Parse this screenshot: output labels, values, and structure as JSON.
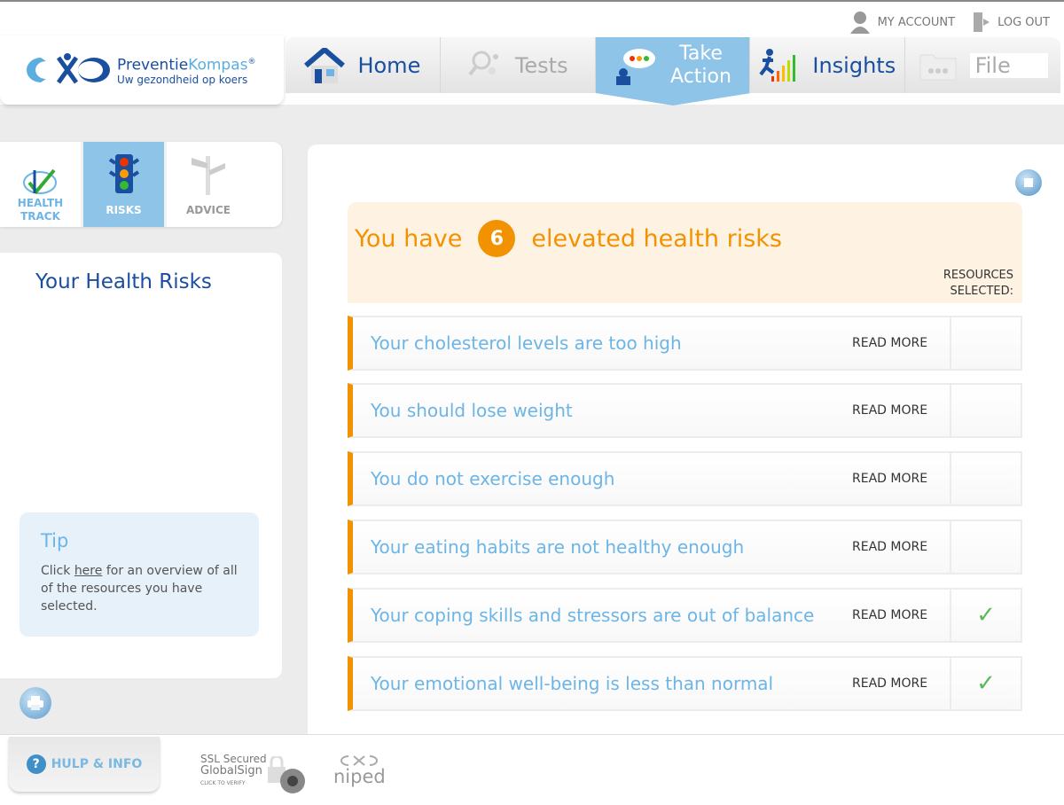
{
  "account": {
    "my_account": "MY ACCOUNT",
    "log_out": "LOG OUT"
  },
  "logo": {
    "brand_a": "Preventie",
    "brand_b": "Kompas",
    "reg": "®",
    "tagline": "Uw gezondheid op koers",
    "mark": "niped"
  },
  "nav": {
    "tabs": [
      {
        "label": "Home",
        "icon": "house-icon"
      },
      {
        "label": "Tests",
        "icon": "magnifier-icon"
      },
      {
        "label": "Take Action",
        "icon": "speech-bubble-person-icon",
        "active": true
      },
      {
        "label": "Insights",
        "icon": "runner-bars-icon"
      },
      {
        "label": "File",
        "icon": "folder-icon"
      }
    ]
  },
  "subnav": {
    "items": [
      {
        "label": "HEALTH TRACK",
        "color": "#6cb5e6"
      },
      {
        "label": "RISKS",
        "active": true
      },
      {
        "label": "ADVICE",
        "color": "#999999"
      }
    ]
  },
  "left": {
    "title": "Your Health Risks",
    "tip": {
      "title": "Tip",
      "pre": "Click ",
      "link": "here",
      "post": " for an overview of all of the resources you have selected."
    }
  },
  "banner": {
    "pre": "You have",
    "count": "6",
    "post": "elevated health risks",
    "resources": "RESOURCES SELECTED:"
  },
  "risks": [
    {
      "title": "Your cholesterol levels are too high",
      "read_more": "READ MORE",
      "selected": false
    },
    {
      "title": "You should lose weight",
      "read_more": "READ MORE",
      "selected": false
    },
    {
      "title": "You do not exercise enough",
      "read_more": "READ MORE",
      "selected": false
    },
    {
      "title": "Your eating habits are not healthy enough",
      "read_more": "READ MORE",
      "selected": false
    },
    {
      "title": "Your coping skills and stressors are out of balance",
      "read_more": "READ MORE",
      "selected": true,
      "check": "✓"
    },
    {
      "title": "Your emotional well-being is less than normal",
      "read_more": "READ MORE",
      "selected": true,
      "check": "✓"
    }
  ],
  "footer": {
    "help": "HULP & INFO",
    "help_icon": "?",
    "ssl_1": "SSL Secured",
    "ssl_2": "GlobalSign",
    "ssl_3": "CLICK TO VERIFY",
    "niped": "niped"
  },
  "colors": {
    "accent_blue": "#8ec4e8",
    "orange": "#f39200",
    "link_blue": "#6cb5e6",
    "navy": "#1a4fa0"
  }
}
